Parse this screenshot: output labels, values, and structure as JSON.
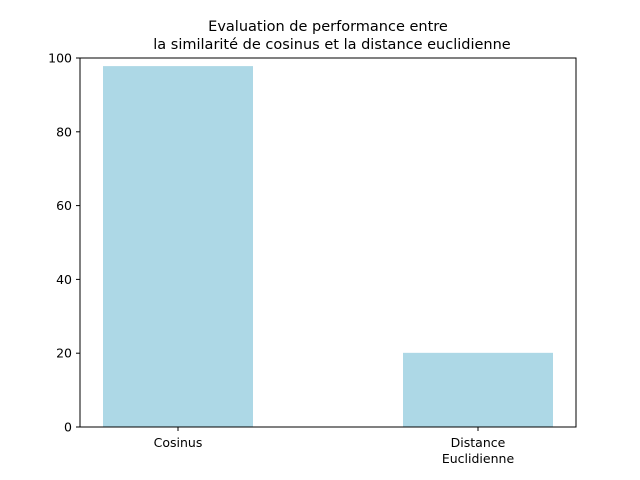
{
  "chart_data": {
    "type": "bar",
    "title": "Evaluation de performance entre\nla similarité de cosinus et la distance euclidienne",
    "title_lines": [
      "Evaluation de performance entre",
      "la similarité de cosinus et la distance euclidienne"
    ],
    "categories": [
      "Cosinus",
      "Distance\nEuclidienne"
    ],
    "category_lines": [
      [
        "Cosinus"
      ],
      [
        "Distance",
        "Euclidienne"
      ]
    ],
    "values": [
      97.8,
      20.1
    ],
    "xlabel": "",
    "ylabel": "",
    "ylim": [
      0,
      100
    ],
    "yticks": [
      0,
      20,
      40,
      60,
      80,
      100
    ],
    "grid": false,
    "bar_color": "#add8e6"
  }
}
